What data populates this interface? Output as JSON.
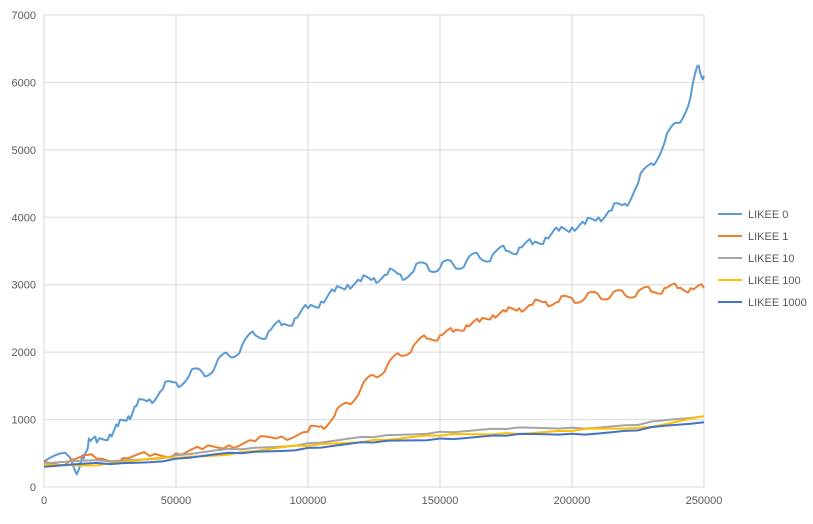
{
  "chart_data": {
    "type": "line",
    "title": "",
    "xlabel": "",
    "ylabel": "",
    "xlim": [
      0,
      250000
    ],
    "ylim": [
      0,
      7000
    ],
    "x_ticks": [
      0,
      50000,
      100000,
      150000,
      200000,
      250000
    ],
    "y_ticks": [
      0,
      1000,
      2000,
      3000,
      4000,
      5000,
      6000,
      7000
    ],
    "x_tick_labels": [
      "0",
      "50000",
      "100000",
      "150000",
      "200000",
      "250000"
    ],
    "y_tick_labels": [
      "0",
      "1000",
      "2000",
      "3000",
      "4000",
      "5000",
      "6000",
      "7000"
    ],
    "grid": true,
    "legend_position": "right",
    "series": [
      {
        "name": "LIKEE 0",
        "color": "#5B9BD5",
        "x": [
          0,
          10000,
          13000,
          15000,
          17000,
          20000,
          25000,
          28000,
          32000,
          35000,
          40000,
          45000,
          50000,
          55000,
          60000,
          65000,
          70000,
          75000,
          80000,
          85000,
          90000,
          95000,
          100000,
          105000,
          110000,
          115000,
          120000,
          125000,
          130000,
          135000,
          140000,
          145000,
          150000,
          155000,
          160000,
          165000,
          170000,
          175000,
          180000,
          185000,
          190000,
          195000,
          200000,
          205000,
          210000,
          215000,
          220000,
          225000,
          230000,
          235000,
          240000,
          245000,
          248000,
          250000
        ],
        "y": [
          380,
          430,
          240,
          420,
          720,
          660,
          780,
          900,
          1050,
          1200,
          1300,
          1450,
          1550,
          1650,
          1700,
          1800,
          1950,
          2100,
          2250,
          2300,
          2400,
          2500,
          2650,
          2750,
          2900,
          3000,
          3050,
          3100,
          3150,
          3150,
          3200,
          3300,
          3250,
          3300,
          3350,
          3400,
          3450,
          3500,
          3550,
          3600,
          3700,
          3800,
          3850,
          3900,
          4000,
          4100,
          4200,
          4500,
          4800,
          5100,
          5400,
          5800,
          6250,
          6100
        ]
      },
      {
        "name": "LIKEE 1",
        "color": "#ED7D31",
        "x": [
          0,
          10000,
          20000,
          30000,
          40000,
          50000,
          60000,
          70000,
          80000,
          90000,
          100000,
          105000,
          110000,
          115000,
          120000,
          125000,
          130000,
          135000,
          140000,
          145000,
          150000,
          155000,
          160000,
          165000,
          170000,
          175000,
          180000,
          185000,
          190000,
          195000,
          200000,
          205000,
          210000,
          215000,
          220000,
          225000,
          230000,
          235000,
          240000,
          245000,
          250000
        ],
        "y": [
          380,
          400,
          420,
          430,
          460,
          500,
          560,
          620,
          680,
          750,
          820,
          900,
          1050,
          1250,
          1450,
          1650,
          1800,
          1950,
          2100,
          2200,
          2250,
          2300,
          2400,
          2450,
          2550,
          2600,
          2650,
          2700,
          2750,
          2750,
          2800,
          2800,
          2850,
          2850,
          2850,
          2900,
          2900,
          2950,
          2950,
          2950,
          2950
        ]
      },
      {
        "name": "LIKEE 10",
        "color": "#A5A5A5",
        "x": [
          0,
          25000,
          50000,
          75000,
          100000,
          125000,
          150000,
          175000,
          200000,
          225000,
          250000
        ],
        "y": [
          350,
          380,
          470,
          560,
          650,
          740,
          820,
          860,
          880,
          920,
          1050
        ]
      },
      {
        "name": "LIKEE 100",
        "color": "#FFC000",
        "x": [
          0,
          25000,
          50000,
          75000,
          100000,
          125000,
          150000,
          175000,
          200000,
          225000,
          250000
        ],
        "y": [
          330,
          350,
          430,
          520,
          610,
          700,
          760,
          800,
          830,
          880,
          1050
        ]
      },
      {
        "name": "LIKEE 1000",
        "color": "#4472C4",
        "x": [
          0,
          25000,
          50000,
          75000,
          100000,
          125000,
          150000,
          175000,
          200000,
          225000,
          250000
        ],
        "y": [
          300,
          340,
          420,
          500,
          580,
          660,
          720,
          760,
          790,
          840,
          960
        ]
      }
    ]
  }
}
